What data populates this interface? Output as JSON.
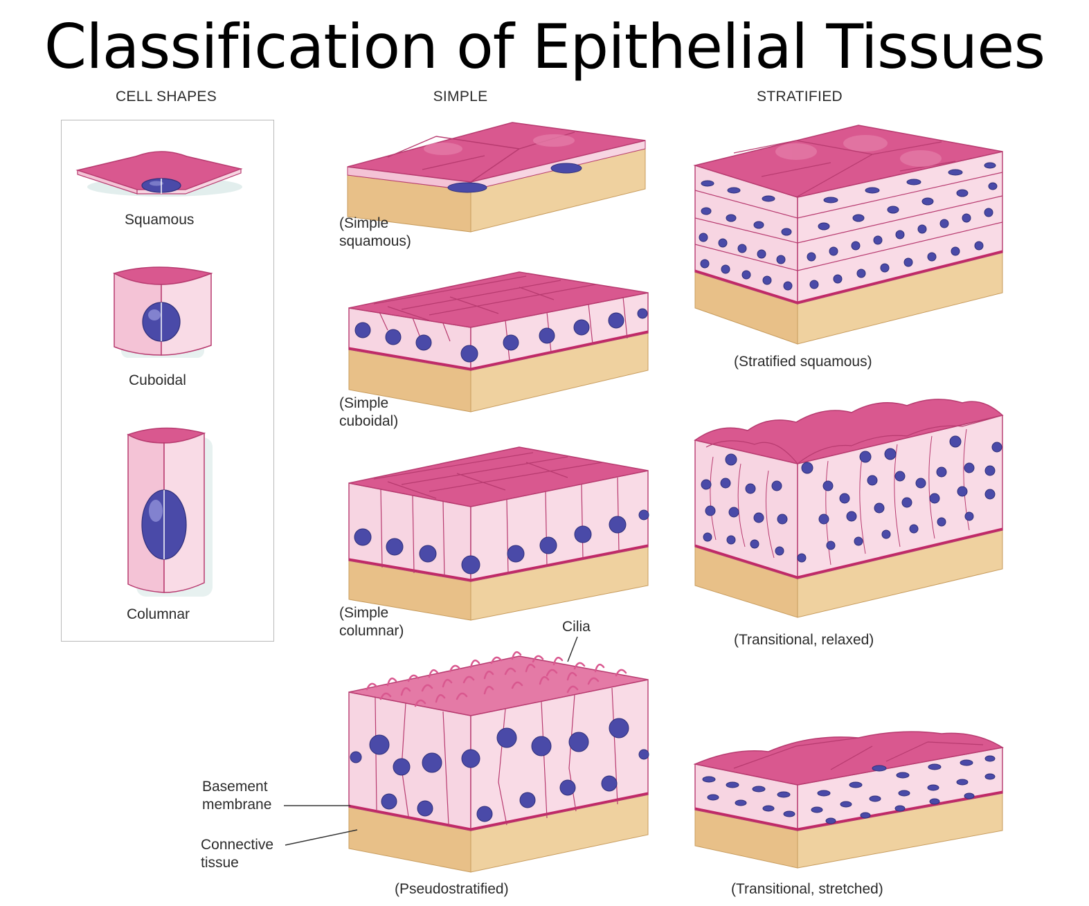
{
  "title": "Classification of Epithelial Tissues",
  "column_headers": {
    "cell_shapes": "CELL SHAPES",
    "simple": "SIMPLE",
    "stratified": "STRATIFIED"
  },
  "cell_shapes": {
    "squamous": "Squamous",
    "cuboidal": "Cuboidal",
    "columnar": "Columnar"
  },
  "simple": {
    "squamous": [
      "(Simple",
      "squamous)"
    ],
    "cuboidal": [
      "(Simple",
      "cuboidal)"
    ],
    "columnar": [
      "(Simple",
      "columnar)"
    ],
    "pseudostratified": "(Pseudostratified)"
  },
  "stratified": {
    "squamous": "(Stratified squamous)",
    "transitional_relaxed": "(Transitional, relaxed)",
    "transitional_stretched": "(Transitional, stretched)"
  },
  "annotations": {
    "cilia": "Cilia",
    "basement_membrane": [
      "Basement",
      "membrane"
    ],
    "connective_tissue": [
      "Connective",
      "tissue"
    ]
  },
  "colors": {
    "cell_top": "#d9588f",
    "cell_side": "#f7d5e2",
    "cell_outline": "#c23a73",
    "nucleus": "#4a4aa8",
    "connective_tissue": "#ecc98d",
    "basement_membrane": "#c02866"
  }
}
